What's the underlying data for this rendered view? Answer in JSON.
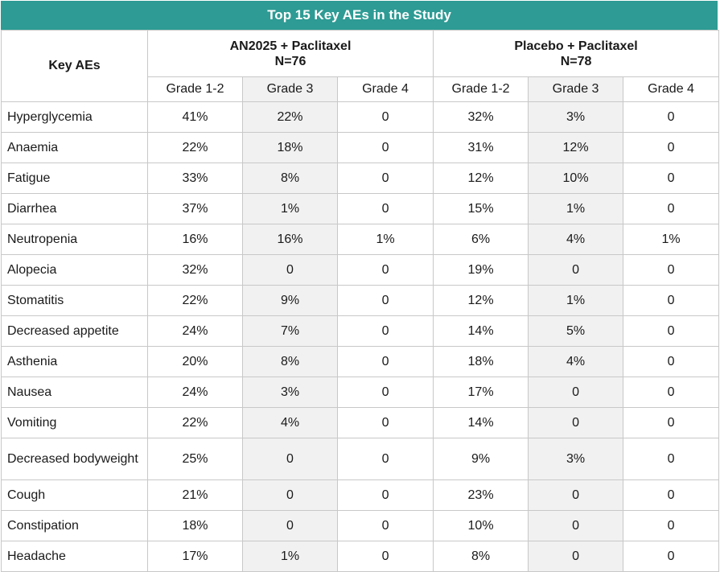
{
  "title": "Top 15 Key AEs in the Study",
  "header": {
    "key_label": "Key AEs",
    "groups": [
      {
        "name": "AN2025 + Paclitaxel",
        "n": "N=76"
      },
      {
        "name": "Placebo + Paclitaxel",
        "n": "N=78"
      }
    ],
    "grades": [
      "Grade 1-2",
      "Grade 3",
      "Grade 4",
      "Grade 1-2",
      "Grade 3",
      "Grade 4"
    ]
  },
  "rows": [
    {
      "ae": "Hyperglycemia",
      "values": [
        "41%",
        "22%",
        "0",
        "32%",
        "3%",
        "0"
      ]
    },
    {
      "ae": "Anaemia",
      "values": [
        "22%",
        "18%",
        "0",
        "31%",
        "12%",
        "0"
      ]
    },
    {
      "ae": "Fatigue",
      "values": [
        "33%",
        "8%",
        "0",
        "12%",
        "10%",
        "0"
      ]
    },
    {
      "ae": "Diarrhea",
      "values": [
        "37%",
        "1%",
        "0",
        "15%",
        "1%",
        "0"
      ]
    },
    {
      "ae": "Neutropenia",
      "values": [
        "16%",
        "16%",
        "1%",
        "6%",
        "4%",
        "1%"
      ]
    },
    {
      "ae": "Alopecia",
      "values": [
        "32%",
        "0",
        "0",
        "19%",
        "0",
        "0"
      ]
    },
    {
      "ae": "Stomatitis",
      "values": [
        "22%",
        "9%",
        "0",
        "12%",
        "1%",
        "0"
      ]
    },
    {
      "ae": "Decreased appetite",
      "values": [
        "24%",
        "7%",
        "0",
        "14%",
        "5%",
        "0"
      ]
    },
    {
      "ae": "Asthenia",
      "values": [
        "20%",
        "8%",
        "0",
        "18%",
        "4%",
        "0"
      ]
    },
    {
      "ae": "Nausea",
      "values": [
        "24%",
        "3%",
        "0",
        "17%",
        "0",
        "0"
      ]
    },
    {
      "ae": "Vomiting",
      "values": [
        "22%",
        "4%",
        "0",
        "14%",
        "0",
        "0"
      ]
    },
    {
      "ae": "Decreased bodyweight",
      "values": [
        "25%",
        "0",
        "0",
        "9%",
        "3%",
        "0"
      ]
    },
    {
      "ae": "Cough",
      "values": [
        "21%",
        "0",
        "0",
        "23%",
        "0",
        "0"
      ]
    },
    {
      "ae": "Constipation",
      "values": [
        "18%",
        "0",
        "0",
        "10%",
        "0",
        "0"
      ]
    },
    {
      "ae": "Headache",
      "values": [
        "17%",
        "1%",
        "0",
        "8%",
        "0",
        "0"
      ]
    }
  ]
}
